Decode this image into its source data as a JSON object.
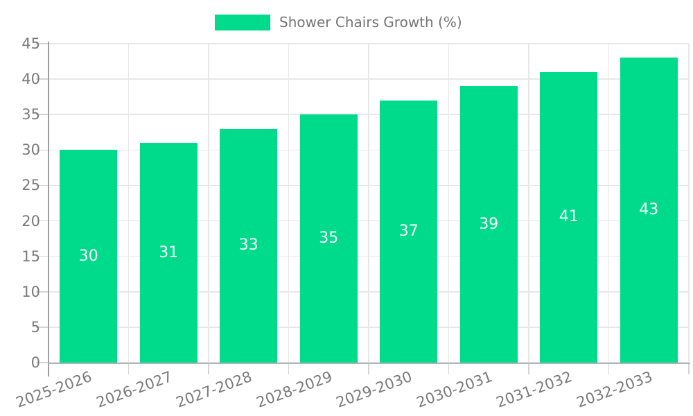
{
  "legend": {
    "label": "Shower Chairs Growth (%)"
  },
  "colors": {
    "bar": "#00db8b",
    "value_label": "#ffffff",
    "tick_label": "#7a7a7a",
    "legend_text": "#757575",
    "grid": "#e7e7e7",
    "axis": "#a6a6a6",
    "background": "#ffffff"
  },
  "chart_data": {
    "type": "bar",
    "title": "Shower Chairs Growth (%)",
    "series": [
      {
        "name": "Shower Chairs Growth (%)",
        "values": [
          30,
          31,
          33,
          35,
          37,
          39,
          41,
          43
        ]
      }
    ],
    "categories": [
      "2025-2026",
      "2026-2027",
      "2027-2028",
      "2028-2029",
      "2029-2030",
      "2030-2031",
      "2031-2032",
      "2032-2033"
    ],
    "xlabel": "",
    "ylabel": "",
    "ylim": [
      0,
      45
    ],
    "yticks": [
      0,
      5,
      10,
      15,
      20,
      25,
      30,
      35,
      40,
      45
    ],
    "grid": true,
    "legend_position": "top-center",
    "value_labels_position": "center",
    "x_label_rotation_deg": -20
  }
}
